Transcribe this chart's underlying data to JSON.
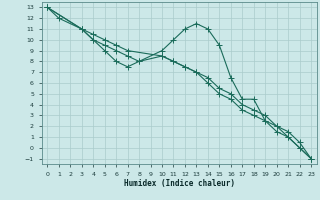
{
  "xlabel": "Humidex (Indice chaleur)",
  "background_color": "#cce8e8",
  "grid_color": "#aacccc",
  "line_color": "#1a6b5a",
  "xlim": [
    -0.5,
    23.5
  ],
  "ylim": [
    -1.5,
    13.5
  ],
  "xticks": [
    0,
    1,
    2,
    3,
    4,
    5,
    6,
    7,
    8,
    9,
    10,
    11,
    12,
    13,
    14,
    15,
    16,
    17,
    18,
    19,
    20,
    21,
    22,
    23
  ],
  "yticks": [
    -1,
    0,
    1,
    2,
    3,
    4,
    5,
    6,
    7,
    8,
    9,
    10,
    11,
    12,
    13
  ],
  "line1_x": [
    0,
    1,
    3,
    4,
    5,
    6,
    7,
    8,
    10,
    11,
    12,
    13,
    14,
    15,
    16,
    17,
    18,
    19,
    20,
    21,
    22,
    23
  ],
  "line1_y": [
    13,
    12,
    11,
    10,
    9,
    8,
    7.5,
    8,
    8.5,
    8,
    7.5,
    7,
    6.5,
    5.5,
    5,
    4,
    3.5,
    3,
    2,
    1.5,
    0.5,
    -1
  ],
  "line2_x": [
    0,
    3,
    4,
    5,
    6,
    7,
    8,
    10,
    11,
    12,
    13,
    14,
    15,
    16,
    17,
    18,
    19,
    20,
    21,
    22,
    23
  ],
  "line2_y": [
    13,
    11,
    10,
    9.5,
    9,
    8.5,
    8,
    9,
    10,
    11,
    11.5,
    11,
    9.5,
    6.5,
    4.5,
    4.5,
    2.5,
    2,
    1,
    0,
    -1
  ],
  "line3_x": [
    0,
    3,
    4,
    5,
    6,
    7,
    10,
    11,
    12,
    13,
    14,
    15,
    16,
    17,
    18,
    19,
    20,
    21,
    22,
    23
  ],
  "line3_y": [
    13,
    11,
    10.5,
    10,
    9.5,
    9,
    8.5,
    8,
    7.5,
    7,
    6,
    5,
    4.5,
    3.5,
    3,
    2.5,
    1.5,
    1,
    0,
    -1
  ],
  "marker_size": 4,
  "line_width": 0.8
}
